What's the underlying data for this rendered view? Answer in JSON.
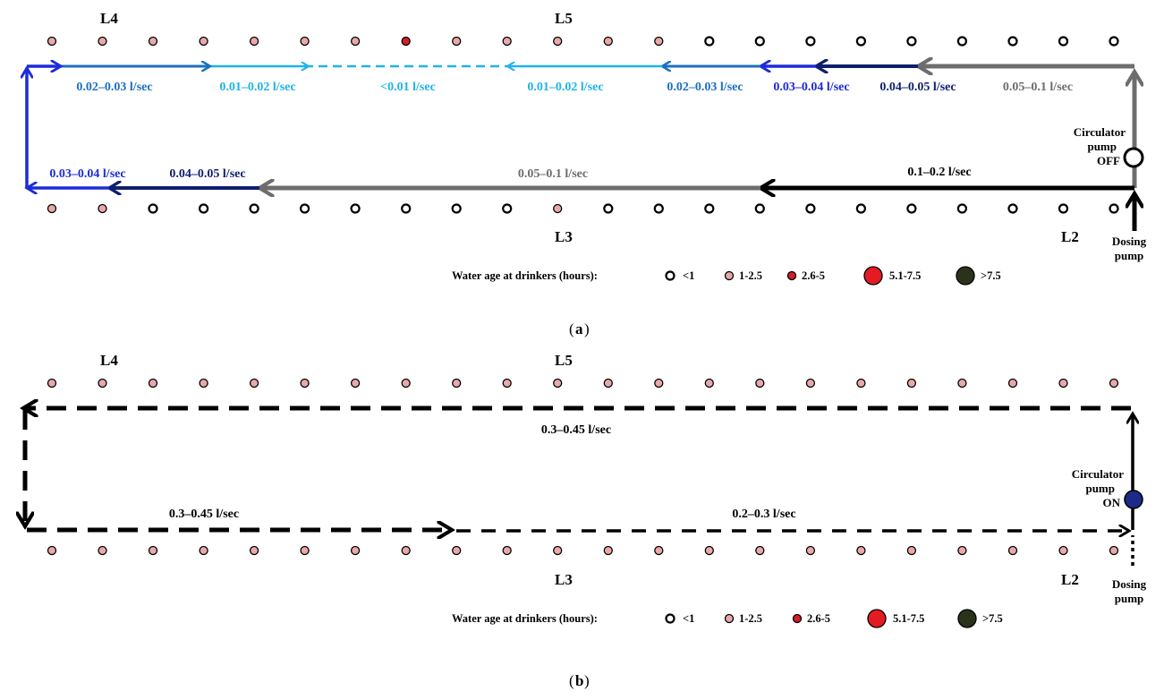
{
  "colors": {
    "black": "#000000",
    "gray": "#6d6d6d",
    "navy": "#0f1f6e",
    "blue": "#1d2bd9",
    "mid_blue": "#1c6fc2",
    "light_blue": "#1fb3e8",
    "dot_pink": "#e8a9a8",
    "dot_red": "#d21f26",
    "dot_dark": "#2a331a",
    "pump_on": "#1c2a8a"
  },
  "panel_a": {
    "line_labels": {
      "l4": "L4",
      "l5": "L5",
      "l3": "L3",
      "l2": "L2"
    },
    "top_row_dots": [
      "pink",
      "pink",
      "pink",
      "pink",
      "pink",
      "pink",
      "pink",
      "red",
      "pink",
      "pink",
      "pink",
      "pink",
      "pink",
      "white",
      "white",
      "white",
      "white",
      "white",
      "white",
      "white",
      "white",
      "white"
    ],
    "bottom_row_dots": [
      "pink",
      "pink",
      "white",
      "white",
      "white",
      "white",
      "white",
      "white",
      "white",
      "white",
      "pink",
      "white",
      "white",
      "white",
      "white",
      "white",
      "white",
      "white",
      "white",
      "white",
      "white",
      "white"
    ],
    "flows": {
      "top_1": "0.02–0.03 l/sec",
      "top_2": "0.01–0.02 l/sec",
      "top_3": "<0.01  l/sec",
      "top_4": "0.01–0.02 l/sec",
      "top_5": "0.02–0.03 l/sec",
      "top_6": "0.03–0.04 l/sec",
      "top_7": "0.04–0.05 l/sec",
      "top_8": "0.05–0.1 l/sec",
      "bot_1": "0.03–0.04 l/sec",
      "bot_2": "0.04–0.05 l/sec",
      "bot_3": "0.05–0.1 l/sec",
      "bot_4": "0.1–0.2 l/sec"
    },
    "pump": {
      "line1": "Circulator",
      "line2": "pump",
      "line3": "OFF"
    },
    "dosing": {
      "line1": "Dosing",
      "line2": "pump"
    },
    "legend": {
      "title": "Water age at drinkers (hours):",
      "items": [
        {
          "label": "<1",
          "color": "white"
        },
        {
          "label": "1-2.5",
          "color": "pink"
        },
        {
          "label": "2.6-5",
          "color": "red"
        },
        {
          "label": "5.1-7.5",
          "color": "red"
        },
        {
          "label": ">7.5",
          "color": "dark"
        }
      ]
    },
    "caption": "a"
  },
  "panel_b": {
    "line_labels": {
      "l4": "L4",
      "l5": "L5",
      "l3": "L3",
      "l2": "L2"
    },
    "top_row_dots": [
      "pink",
      "pink",
      "pink",
      "pink",
      "pink",
      "pink",
      "pink",
      "pink",
      "pink",
      "pink",
      "pink",
      "pink",
      "pink",
      "pink",
      "pink",
      "pink",
      "pink",
      "pink",
      "pink",
      "pink",
      "pink",
      "pink"
    ],
    "bottom_row_dots": [
      "pink",
      "pink",
      "pink",
      "pink",
      "pink",
      "pink",
      "pink",
      "pink",
      "pink",
      "pink",
      "pink",
      "pink",
      "pink",
      "pink",
      "pink",
      "pink",
      "pink",
      "pink",
      "pink",
      "pink",
      "pink",
      "pink"
    ],
    "flows": {
      "top": "0.3–0.45 l/sec",
      "bot_1": "0.3–0.45 l/sec",
      "bot_2": "0.2–0.3 l/sec"
    },
    "pump": {
      "line1": "Circulator",
      "line2": "pump",
      "line3": "ON"
    },
    "dosing": {
      "line1": "Dosing",
      "line2": "pump"
    },
    "legend": {
      "title": "Water age at drinkers (hours):",
      "items": [
        {
          "label": "<1",
          "color": "white"
        },
        {
          "label": "1-2.5",
          "color": "pink"
        },
        {
          "label": "2.6-5",
          "color": "red"
        },
        {
          "label": "5.1-7.5",
          "color": "red"
        },
        {
          "label": ">7.5",
          "color": "dark"
        }
      ]
    },
    "caption": "b"
  }
}
